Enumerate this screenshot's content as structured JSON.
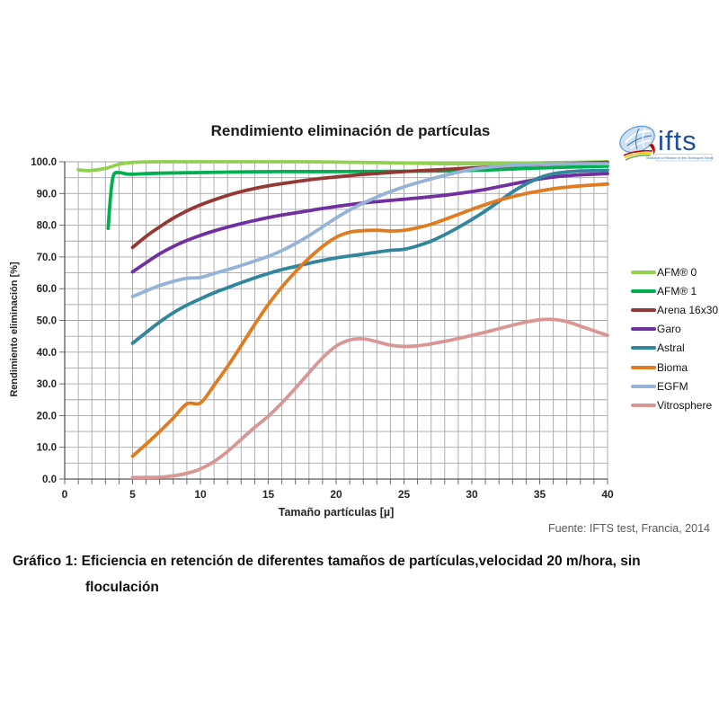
{
  "page": {
    "source": "Fuente: IFTS test, Francia, 2014",
    "caption_line1": "Gráfico 1: Eficiencia en retención de diferentes tamaños de partículas,velocidad 20 m/hora, sin",
    "caption_line2": "floculación"
  },
  "logo": {
    "name": "ifts",
    "tagline": "Institut de la Filtration et des Techniques Séparatives"
  },
  "chart_data": {
    "type": "line",
    "title": "Rendimiento eliminación de partículas",
    "xlabel": "Tamaño partículas [µ]",
    "ylabel": "Rendimiento eliminación [%]",
    "xlim": [
      0,
      40
    ],
    "ylim": [
      0,
      100
    ],
    "x_tick_labels": [
      0,
      5,
      10,
      15,
      20,
      25,
      30,
      35,
      40
    ],
    "x_minor_grid_step": 1,
    "y_tick_labels": [
      "0.0",
      "10.0",
      "20.0",
      "30.0",
      "40.0",
      "50.0",
      "60.0",
      "70.0",
      "80.0",
      "90.0",
      "100.0"
    ],
    "y_grid_step": 5,
    "grid": true,
    "legend_position": "right",
    "colors": {
      "grid": "#a6a6a6",
      "axis": "#595959",
      "tick_text": "#262626"
    },
    "series": [
      {
        "name": "AFM® 0",
        "color": "#92D050",
        "points": [
          [
            1,
            97.5
          ],
          [
            1.8,
            97.2
          ],
          [
            3,
            97.9
          ],
          [
            4,
            99.2
          ],
          [
            5,
            99.8
          ],
          [
            7,
            100
          ],
          [
            10,
            100
          ],
          [
            15,
            100
          ],
          [
            18,
            100
          ],
          [
            20,
            99.9
          ],
          [
            24,
            99.7
          ],
          [
            28,
            99.4
          ],
          [
            31,
            99.4
          ],
          [
            34,
            99.6
          ],
          [
            37,
            99.8
          ],
          [
            40,
            100
          ]
        ]
      },
      {
        "name": "AFM® 1",
        "color": "#00B050",
        "points": [
          [
            3.2,
            79
          ],
          [
            3.4,
            90
          ],
          [
            3.6,
            95.8
          ],
          [
            4,
            96.6
          ],
          [
            4.5,
            96.2
          ],
          [
            5,
            96.1
          ],
          [
            7,
            96.4
          ],
          [
            10,
            96.6
          ],
          [
            13,
            96.8
          ],
          [
            16,
            96.9
          ],
          [
            20,
            96.9
          ],
          [
            24,
            97
          ],
          [
            28,
            97.1
          ],
          [
            31,
            97.4
          ],
          [
            34,
            97.9
          ],
          [
            37,
            98.3
          ],
          [
            40,
            98.6
          ]
        ]
      },
      {
        "name": "Arena 16x30",
        "color": "#953735",
        "points": [
          [
            5,
            73
          ],
          [
            6,
            76.5
          ],
          [
            7,
            79.5
          ],
          [
            8,
            82.2
          ],
          [
            9,
            84.5
          ],
          [
            10,
            86.4
          ],
          [
            11,
            88
          ],
          [
            12,
            89.4
          ],
          [
            13,
            90.6
          ],
          [
            14,
            91.6
          ],
          [
            15,
            92.4
          ],
          [
            16,
            93.1
          ],
          [
            18,
            94.3
          ],
          [
            20,
            95.2
          ],
          [
            22,
            96
          ],
          [
            25,
            96.9
          ],
          [
            28,
            97.6
          ],
          [
            31,
            98.3
          ],
          [
            34,
            99
          ],
          [
            37,
            99.4
          ],
          [
            40,
            99.8
          ]
        ]
      },
      {
        "name": "Garo",
        "color": "#7030A0",
        "points": [
          [
            5,
            65.3
          ],
          [
            6,
            68.2
          ],
          [
            7,
            71
          ],
          [
            8,
            73.3
          ],
          [
            9,
            75.2
          ],
          [
            10,
            76.8
          ],
          [
            11,
            78.2
          ],
          [
            12,
            79.4
          ],
          [
            13,
            80.5
          ],
          [
            14,
            81.5
          ],
          [
            15,
            82.4
          ],
          [
            16,
            83.2
          ],
          [
            18,
            84.6
          ],
          [
            20,
            85.9
          ],
          [
            22,
            87
          ],
          [
            25,
            88.2
          ],
          [
            27,
            89
          ],
          [
            29,
            90
          ],
          [
            31,
            91.3
          ],
          [
            33,
            93
          ],
          [
            35,
            94.6
          ],
          [
            37,
            95.6
          ],
          [
            39,
            96.1
          ],
          [
            40,
            96.3
          ]
        ]
      },
      {
        "name": "Astral",
        "color": "#31859C",
        "points": [
          [
            5,
            42.8
          ],
          [
            6,
            46.2
          ],
          [
            7,
            49.5
          ],
          [
            8,
            52.4
          ],
          [
            9,
            54.8
          ],
          [
            10,
            56.8
          ],
          [
            11,
            58.7
          ],
          [
            12,
            60.3
          ],
          [
            13,
            61.9
          ],
          [
            14,
            63.4
          ],
          [
            15,
            64.8
          ],
          [
            16,
            66
          ],
          [
            17,
            67
          ],
          [
            18,
            68
          ],
          [
            19,
            68.9
          ],
          [
            20,
            69.7
          ],
          [
            21,
            70.3
          ],
          [
            22,
            70.9
          ],
          [
            23,
            71.5
          ],
          [
            24,
            72.1
          ],
          [
            25,
            72.4
          ],
          [
            26,
            73.5
          ],
          [
            27,
            75
          ],
          [
            28,
            77
          ],
          [
            29,
            79.3
          ],
          [
            30,
            81.8
          ],
          [
            31,
            84.5
          ],
          [
            32,
            87.5
          ],
          [
            33,
            90.5
          ],
          [
            34,
            93
          ],
          [
            35,
            95
          ],
          [
            36,
            96.2
          ],
          [
            37,
            96.8
          ],
          [
            38,
            97.1
          ],
          [
            39,
            97.2
          ],
          [
            40,
            97.3
          ]
        ]
      },
      {
        "name": "Bioma",
        "color": "#E07B1F",
        "points": [
          [
            5,
            7.2
          ],
          [
            6,
            11
          ],
          [
            7,
            15
          ],
          [
            8,
            19.2
          ],
          [
            9,
            23.7
          ],
          [
            10,
            24
          ],
          [
            11,
            29.5
          ],
          [
            12,
            35.5
          ],
          [
            13,
            42
          ],
          [
            14,
            48.7
          ],
          [
            15,
            55
          ],
          [
            16,
            60.5
          ],
          [
            17,
            65.3
          ],
          [
            18,
            69.6
          ],
          [
            19,
            73.3
          ],
          [
            20,
            76.2
          ],
          [
            21,
            77.8
          ],
          [
            22,
            78.3
          ],
          [
            23,
            78.4
          ],
          [
            24,
            78.2
          ],
          [
            25,
            78.4
          ],
          [
            26,
            79.2
          ],
          [
            27,
            80.3
          ],
          [
            28,
            81.8
          ],
          [
            29,
            83.4
          ],
          [
            30,
            85
          ],
          [
            31,
            86.5
          ],
          [
            32,
            87.9
          ],
          [
            33,
            89
          ],
          [
            34,
            90
          ],
          [
            35,
            90.8
          ],
          [
            36,
            91.5
          ],
          [
            37,
            92
          ],
          [
            38,
            92.4
          ],
          [
            39,
            92.7
          ],
          [
            40,
            93
          ]
        ]
      },
      {
        "name": "EGFM",
        "color": "#95B3D7",
        "points": [
          [
            5,
            57.5
          ],
          [
            6,
            59.3
          ],
          [
            7,
            61
          ],
          [
            8,
            62.3
          ],
          [
            9,
            63.3
          ],
          [
            10,
            63.5
          ],
          [
            11,
            64.8
          ],
          [
            12,
            66
          ],
          [
            13,
            67.3
          ],
          [
            14,
            68.7
          ],
          [
            15,
            70.2
          ],
          [
            16,
            72
          ],
          [
            17,
            74.2
          ],
          [
            18,
            76.7
          ],
          [
            19,
            79.5
          ],
          [
            20,
            82.3
          ],
          [
            21,
            84.8
          ],
          [
            22,
            87
          ],
          [
            23,
            88.9
          ],
          [
            24,
            90.6
          ],
          [
            25,
            92.1
          ],
          [
            26,
            93.4
          ],
          [
            27,
            94.6
          ],
          [
            28,
            95.7
          ],
          [
            29,
            96.7
          ],
          [
            30,
            97.6
          ],
          [
            32,
            98.6
          ],
          [
            34,
            99.1
          ],
          [
            36,
            99.3
          ],
          [
            38,
            99.4
          ],
          [
            40,
            99.4
          ]
        ]
      },
      {
        "name": "Vitrosphere",
        "color": "#D99694",
        "points": [
          [
            5,
            0.5
          ],
          [
            6,
            0.5
          ],
          [
            7,
            0.6
          ],
          [
            8,
            1
          ],
          [
            9,
            1.8
          ],
          [
            10,
            3.2
          ],
          [
            11,
            5.5
          ],
          [
            12,
            8.7
          ],
          [
            13,
            12.5
          ],
          [
            14,
            16.3
          ],
          [
            15,
            19.8
          ],
          [
            16,
            24
          ],
          [
            17,
            28.6
          ],
          [
            18,
            33.5
          ],
          [
            19,
            38.2
          ],
          [
            20,
            41.9
          ],
          [
            21,
            43.8
          ],
          [
            22,
            44.2
          ],
          [
            23,
            43.3
          ],
          [
            24,
            42.2
          ],
          [
            25,
            41.8
          ],
          [
            26,
            42
          ],
          [
            27,
            42.6
          ],
          [
            28,
            43.4
          ],
          [
            29,
            44.3
          ],
          [
            30,
            45.3
          ],
          [
            31,
            46.3
          ],
          [
            32,
            47.4
          ],
          [
            33,
            48.5
          ],
          [
            34,
            49.5
          ],
          [
            35,
            50.2
          ],
          [
            36,
            50.3
          ],
          [
            37,
            49.6
          ],
          [
            38,
            48.2
          ],
          [
            39,
            46.7
          ],
          [
            40,
            45.3
          ]
        ]
      }
    ]
  }
}
